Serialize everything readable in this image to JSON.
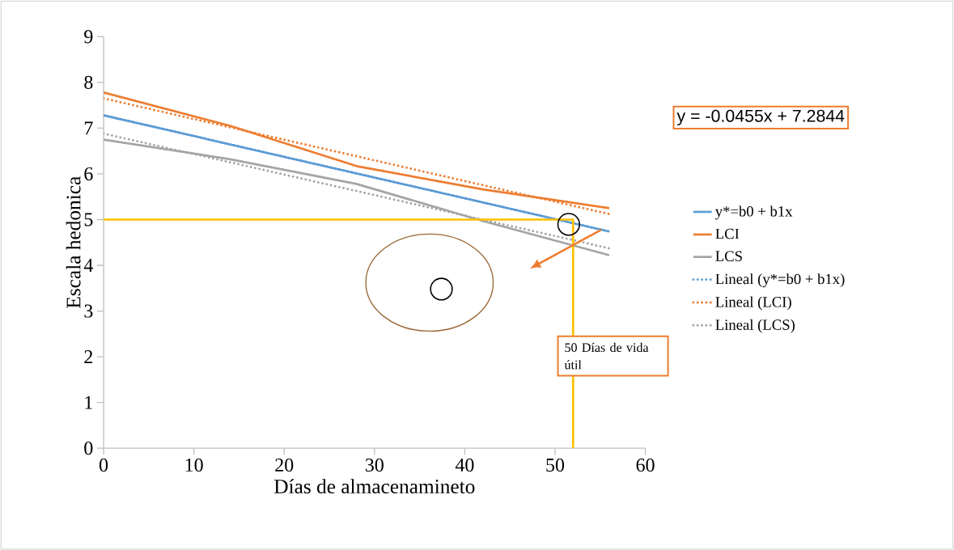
{
  "chart_data": {
    "type": "line",
    "xlabel": "Días de almacenamineto",
    "ylabel": "Escala  hedonica",
    "xlim": [
      0,
      60
    ],
    "ylim": [
      0,
      9
    ],
    "xticks": [
      0,
      10,
      20,
      30,
      40,
      50,
      60
    ],
    "yticks": [
      0,
      1,
      2,
      3,
      4,
      5,
      6,
      7,
      8,
      9
    ],
    "grid": false,
    "legend": "right",
    "marker": "none",
    "series": [
      {
        "name": "y*=b0 + b1x",
        "color": "#5b9bd5",
        "line_style": "solid",
        "x": [
          0,
          56
        ],
        "values": [
          7.28,
          4.74
        ]
      },
      {
        "name": "LCI",
        "color": "#ed7d31",
        "line_style": "solid",
        "x": [
          0,
          14,
          28,
          42,
          56
        ],
        "values": [
          7.78,
          7.05,
          6.17,
          5.66,
          5.25
        ]
      },
      {
        "name": "LCS",
        "color": "#a5a5a5",
        "line_style": "solid",
        "x": [
          0,
          14,
          28,
          42,
          56
        ],
        "values": [
          6.75,
          6.32,
          5.78,
          4.97,
          4.22
        ]
      },
      {
        "name": "Lineal (y*=b0 + b1x)",
        "color": "#5b9bd5",
        "line_style": "dotted",
        "x": [
          0,
          56
        ],
        "values": [
          7.28,
          4.74
        ]
      },
      {
        "name": "Lineal (LCI)",
        "color": "#ed7d31",
        "line_style": "dotted",
        "x": [
          0,
          56
        ],
        "values": [
          7.65,
          5.12
        ]
      },
      {
        "name": "Lineal (LCS)",
        "color": "#a5a5a5",
        "line_style": "dotted",
        "x": [
          0,
          56
        ],
        "values": [
          6.88,
          4.37
        ]
      },
      {
        "color": "#ffc000",
        "line_style": "solid",
        "x": [
          0,
          52,
          52
        ],
        "values": [
          5,
          5,
          0
        ]
      }
    ],
    "annotations": [
      "y = -0.0455x + 7.2844",
      "50 Días de vida útil"
    ]
  }
}
